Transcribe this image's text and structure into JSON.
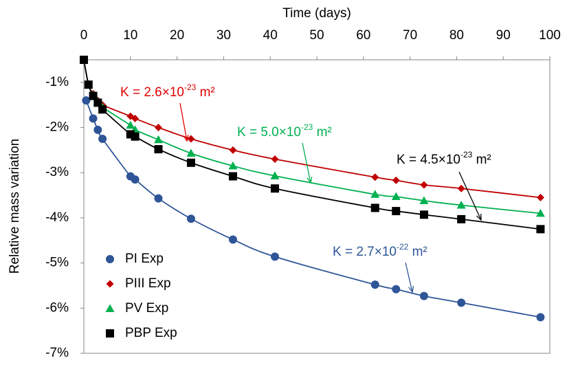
{
  "chart_data": {
    "type": "scatter",
    "x_label": "Time (days)",
    "y_label": "Relative mass variation",
    "xlim": [
      0,
      100
    ],
    "xticks": [
      0,
      10,
      20,
      30,
      40,
      50,
      60,
      70,
      80,
      90,
      100
    ],
    "ylim": [
      -7,
      -0.5
    ],
    "yticks": [
      {
        "value": -1,
        "label": "-1%"
      },
      {
        "value": -2,
        "label": "-2%"
      },
      {
        "value": -3,
        "label": "-3%"
      },
      {
        "value": -4,
        "label": "-4%"
      },
      {
        "value": -5,
        "label": "-5%"
      },
      {
        "value": -6,
        "label": "-6%"
      },
      {
        "value": -7,
        "label": "-7%"
      }
    ],
    "legend": "lower left",
    "series": [
      {
        "name": "PI Exp",
        "color": "#2e5597",
        "marker": "circle",
        "x": [
          0.5,
          2,
          3,
          4,
          10,
          11,
          16,
          23,
          32,
          41,
          62.5,
          67,
          73,
          81,
          98
        ],
        "values": [
          -1.4,
          -1.8,
          -2.05,
          -2.25,
          -3.08,
          -3.15,
          -3.57,
          -4.02,
          -4.48,
          -4.86,
          -5.48,
          -5.58,
          -5.73,
          -5.88,
          -6.2
        ]
      },
      {
        "name": "PIII Exp",
        "color": "#c00000",
        "marker": "diamond",
        "x": [
          0,
          1,
          2,
          3,
          4,
          10,
          11,
          16,
          23,
          32,
          41,
          62.5,
          67,
          73,
          81,
          98
        ],
        "values": [
          -0.5,
          -1.05,
          -1.25,
          -1.4,
          -1.5,
          -1.75,
          -1.8,
          -2.0,
          -2.25,
          -2.5,
          -2.7,
          -3.1,
          -3.17,
          -3.27,
          -3.35,
          -3.55
        ]
      },
      {
        "name": "PV Exp",
        "color": "#00b050",
        "marker": "triangle",
        "x": [
          0,
          1,
          2,
          3,
          4,
          10,
          11,
          16,
          23,
          32,
          41,
          62.5,
          67,
          73,
          81,
          98
        ],
        "values": [
          -0.5,
          -1.05,
          -1.28,
          -1.43,
          -1.55,
          -1.95,
          -2.05,
          -2.27,
          -2.57,
          -2.85,
          -3.07,
          -3.48,
          -3.53,
          -3.62,
          -3.72,
          -3.9
        ]
      },
      {
        "name": "PBP Exp",
        "color": "#000000",
        "marker": "square",
        "x": [
          0,
          1,
          2,
          3,
          4,
          10,
          11,
          16,
          23,
          32,
          41,
          62.5,
          67,
          73,
          81,
          98
        ],
        "values": [
          -0.5,
          -1.05,
          -1.3,
          -1.45,
          -1.6,
          -2.15,
          -2.2,
          -2.48,
          -2.78,
          -3.08,
          -3.35,
          -3.78,
          -3.85,
          -3.93,
          -4.03,
          -4.25
        ]
      }
    ],
    "annotations": [
      {
        "text": "K = 2.6×10",
        "sup": "-23",
        "tail": " m²",
        "color": "#e00000"
      },
      {
        "text": "K = 5.0×10",
        "sup": "-23",
        "tail": " m²",
        "color": "#00b050"
      },
      {
        "text": "K = 4.5×10",
        "sup": "-23",
        "tail": " m²",
        "color": "#000000"
      },
      {
        "text": "K = 2.7×10",
        "sup": "-22",
        "tail": " m²",
        "color": "#2e5597"
      }
    ]
  }
}
